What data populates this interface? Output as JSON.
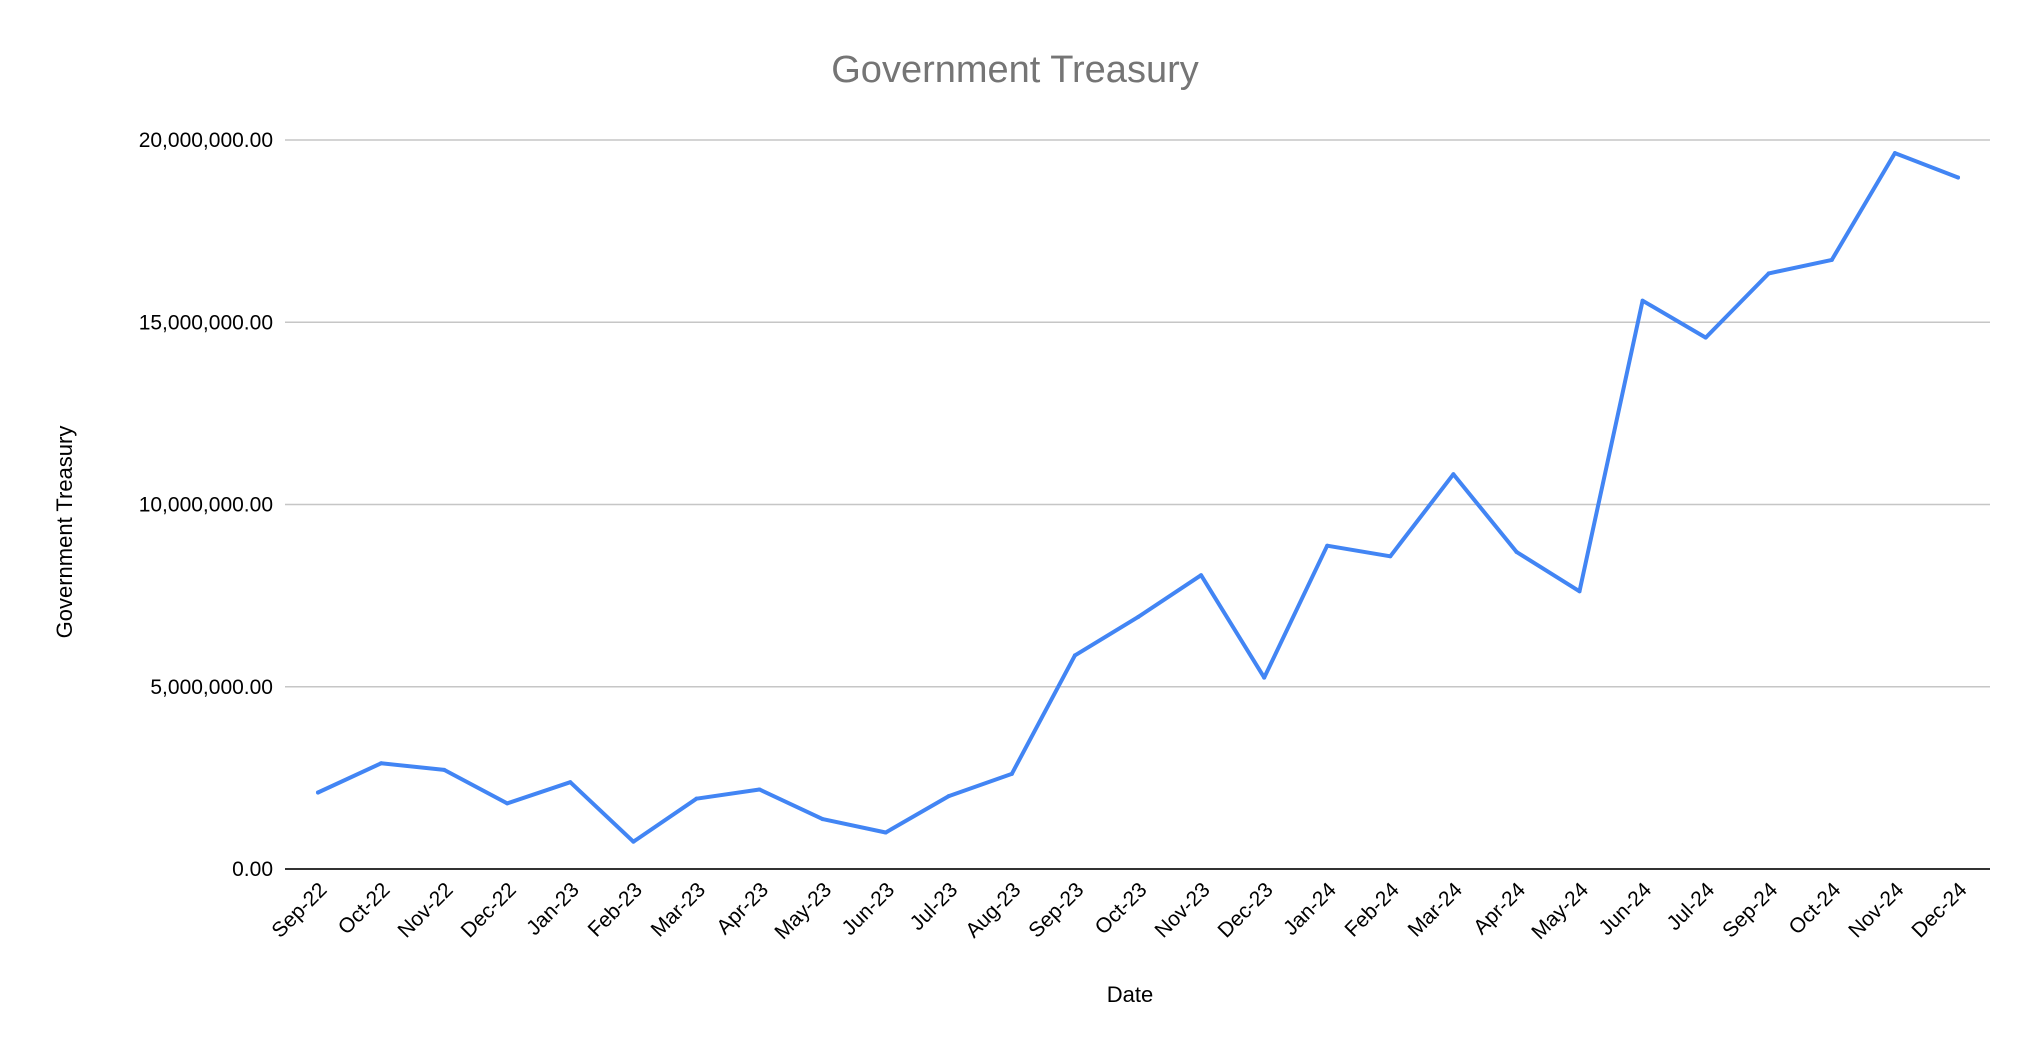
{
  "chart_data": {
    "type": "line",
    "title": "Government Treasury",
    "xlabel": "Date",
    "ylabel": "Government Treasury",
    "categories": [
      "Sep-22",
      "Oct-22",
      "Nov-22",
      "Dec-22",
      "Jan-23",
      "Feb-23",
      "Mar-23",
      "Apr-23",
      "May-23",
      "Jun-23",
      "Jul-23",
      "Aug-23",
      "Sep-23",
      "Oct-23",
      "Nov-23",
      "Dec-23",
      "Jan-24",
      "Feb-24",
      "Mar-24",
      "Apr-24",
      "May-24",
      "Jun-24",
      "Jul-24",
      "Sep-24",
      "Oct-24",
      "Nov-24",
      "Dec-24"
    ],
    "series": [
      {
        "values": [
          2100000,
          2900000,
          2720000,
          1800000,
          2380000,
          750000,
          1930000,
          2180000,
          1370000,
          1000000,
          2000000,
          2610000,
          5860000,
          6910000,
          8060000,
          5250000,
          8870000,
          8580000,
          10830000,
          8700000,
          7620000,
          15590000,
          14580000,
          16340000,
          16710000,
          19640000,
          18970000
        ]
      }
    ],
    "ylim": [
      0,
      20000000
    ],
    "yticks": [
      "0.00",
      "5,000,000.00",
      "10,000,000.00",
      "15,000,000.00",
      "20,000,000.00"
    ],
    "ytick_values": [
      0,
      5000000,
      10000000,
      15000000,
      20000000
    ],
    "grid": true,
    "legend": "none",
    "colors": {
      "line": "#4285f4",
      "title": "#757575",
      "grid": "#c6c6c6"
    }
  }
}
